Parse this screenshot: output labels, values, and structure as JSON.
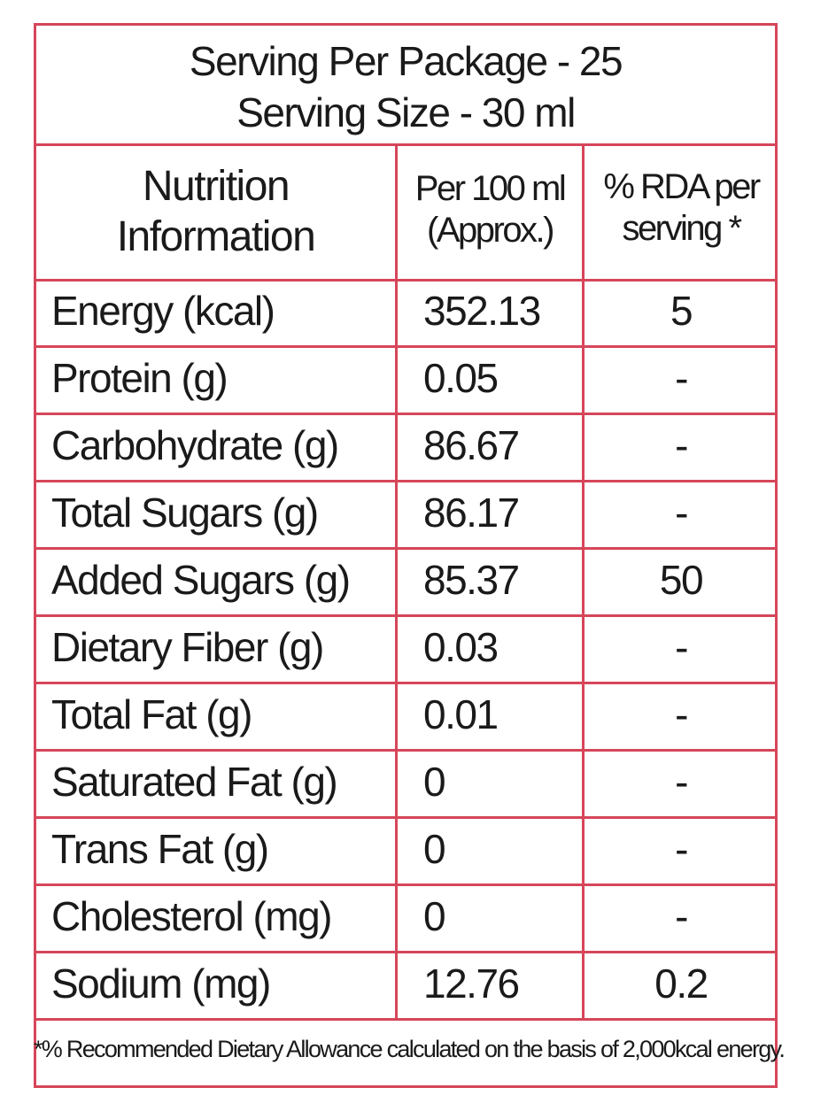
{
  "header": {
    "servings_per_package": "Serving Per Package - 25",
    "serving_size": "Serving Size - 30 ml"
  },
  "columns": {
    "nutrient_line1": "Nutrition",
    "nutrient_line2": "Information",
    "per100_line1": "Per 100 ml",
    "per100_line2": "(Approx.)",
    "rda_line1": "% RDA per",
    "rda_line2": "serving *"
  },
  "rows": [
    {
      "name": "Energy (kcal)",
      "per100": "352.13",
      "rda": "5"
    },
    {
      "name": "Protein (g)",
      "per100": "0.05",
      "rda": "-"
    },
    {
      "name": "Carbohydrate (g)",
      "per100": "86.67",
      "rda": "-"
    },
    {
      "name": "Total Sugars (g)",
      "per100": "86.17",
      "rda": "-"
    },
    {
      "name": "Added Sugars (g)",
      "per100": "85.37",
      "rda": "50"
    },
    {
      "name": "Dietary Fiber (g)",
      "per100": "0.03",
      "rda": "-"
    },
    {
      "name": "Total Fat (g)",
      "per100": "0.01",
      "rda": "-"
    },
    {
      "name": "Saturated Fat (g)",
      "per100": "0",
      "rda": "-"
    },
    {
      "name": "Trans Fat (g)",
      "per100": "0",
      "rda": "-"
    },
    {
      "name": "Cholesterol (mg)",
      "per100": "0",
      "rda": "-"
    },
    {
      "name": "Sodium (mg)",
      "per100": "12.76",
      "rda": "0.2"
    }
  ],
  "footnote": "*% Recommended Dietary Allowance calculated on the basis of 2,000kcal energy.",
  "colors": {
    "border": "#d6465a",
    "text": "#1a1a1a"
  }
}
